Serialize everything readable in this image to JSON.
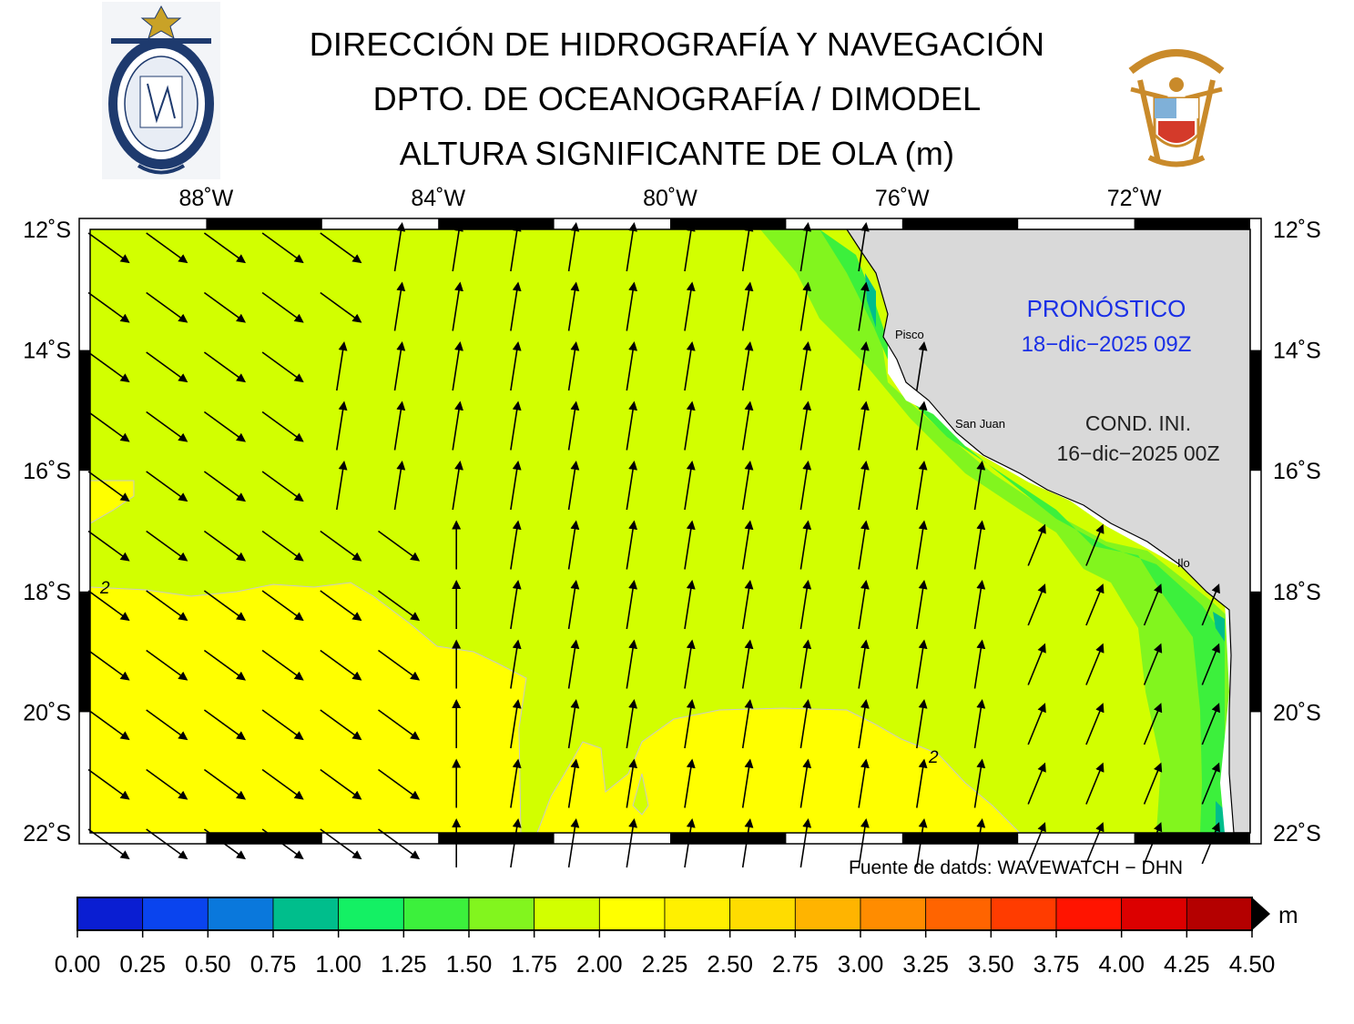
{
  "header": {
    "line1": "DIRECCIÓN DE HIDROGRAFÍA Y NAVEGACIÓN",
    "line2": "DPTO. DE OCEANOGRAFÍA / DIMODEL",
    "line3": "ALTURA SIGNIFICANTE DE OLA (m)"
  },
  "logos": {
    "left": "dhn-seal-logo",
    "right": "marina-de-guerra-coat-of-arms-logo"
  },
  "axes": {
    "lon_ticks": [
      "88˚W",
      "84˚W",
      "80˚W",
      "76˚W",
      "72˚W"
    ],
    "lat_ticks": [
      "12˚S",
      "14˚S",
      "16˚S",
      "18˚S",
      "20˚S",
      "22˚S"
    ],
    "lon_range": [
      -90,
      -70
    ],
    "lat_range": [
      -22,
      -12
    ]
  },
  "annotations": {
    "forecast_title": "PRONÓSTICO",
    "forecast_date": "18−dic−2025 09Z",
    "init_title": "COND. INI.",
    "init_date": "16−dic−2025 00Z",
    "source": "Fuente de datos: WAVEWATCH − DHN"
  },
  "cities": [
    {
      "name": "Pisco",
      "lon": -76.2,
      "lat": -13.7
    },
    {
      "name": "San Juan",
      "lon": -75.2,
      "lat": -15.35
    },
    {
      "name": "Ilo",
      "lon": -71.35,
      "lat": -17.65
    }
  ],
  "contour_labels": [
    {
      "text": "2",
      "lon": -89.8,
      "lat": -18.0
    },
    {
      "text": "2",
      "lon": -75.5,
      "lat": -20.8
    }
  ],
  "colorbar": {
    "unit": "m",
    "ticks": [
      "0.00",
      "0.25",
      "0.50",
      "0.75",
      "1.00",
      "1.25",
      "1.50",
      "1.75",
      "2.00",
      "2.25",
      "2.50",
      "2.75",
      "3.00",
      "3.25",
      "3.50",
      "3.75",
      "4.00",
      "4.25",
      "4.50"
    ],
    "colors": [
      "#0a1ed2",
      "#0a44ee",
      "#0a78dc",
      "#00be8c",
      "#14f064",
      "#3cf03c",
      "#82f51e",
      "#d2ff00",
      "#ffff00",
      "#fff000",
      "#ffdc00",
      "#ffb400",
      "#ff8c00",
      "#ff6400",
      "#ff3c00",
      "#ff1400",
      "#dc0000",
      "#b40000"
    ]
  },
  "map": {
    "land_color": "#d9d9d9",
    "wave_regions": [
      {
        "level": "1.75-2.00",
        "color": "#d2ff00"
      },
      {
        "level": "2.00-2.25",
        "color": "#ffff00"
      },
      {
        "level": "1.50-1.75",
        "color": "#82f51e"
      },
      {
        "level": "1.25-1.50",
        "color": "#3cf03c"
      },
      {
        "level": "0.75-1.00",
        "color": "#00be8c"
      }
    ],
    "arrow_color": "#000000"
  }
}
